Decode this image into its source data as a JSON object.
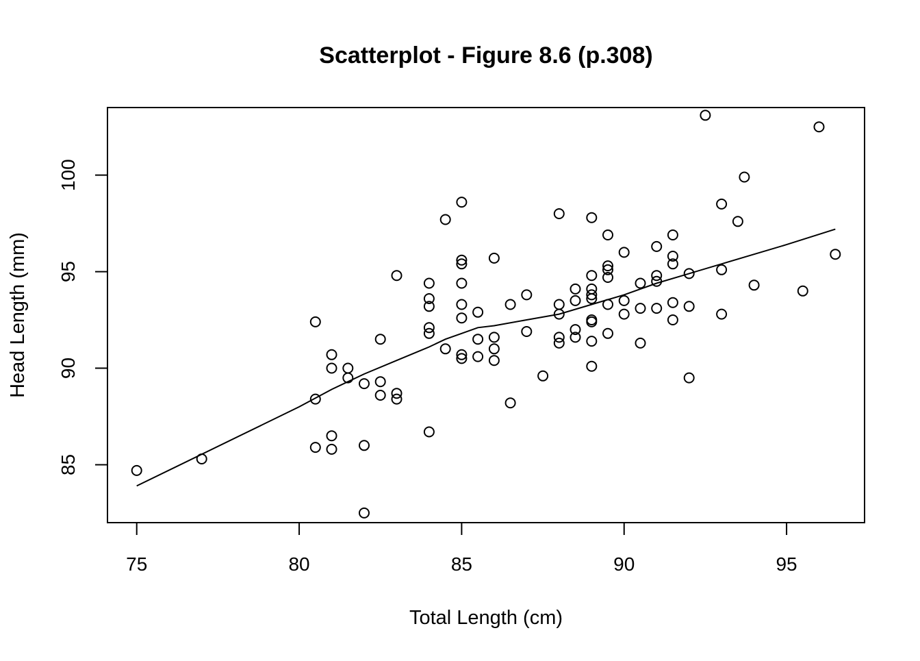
{
  "chart_data": {
    "type": "scatter",
    "title": "Scatterplot - Figure 8.6 (p.308)",
    "xlabel": "Total Length (cm)",
    "ylabel": "Head Length (mm)",
    "xlim": [
      74.1,
      97.4
    ],
    "ylim": [
      82.0,
      103.5
    ],
    "xticks": [
      75,
      80,
      85,
      90,
      95
    ],
    "yticks": [
      85,
      90,
      95,
      100
    ],
    "grid": false,
    "series": [
      {
        "marker": "open-circle",
        "points": [
          [
            75,
            84.7
          ],
          [
            77,
            85.3
          ],
          [
            80.5,
            92.4
          ],
          [
            80.5,
            88.4
          ],
          [
            80.5,
            85.9
          ],
          [
            81,
            90.7
          ],
          [
            81,
            90.0
          ],
          [
            81,
            86.5
          ],
          [
            81,
            85.8
          ],
          [
            81.5,
            90.0
          ],
          [
            81.5,
            89.5
          ],
          [
            82,
            89.2
          ],
          [
            82,
            86.0
          ],
          [
            82,
            82.5
          ],
          [
            82.5,
            91.5
          ],
          [
            82.5,
            89.3
          ],
          [
            82.5,
            88.6
          ],
          [
            83,
            94.8
          ],
          [
            83,
            88.7
          ],
          [
            83,
            88.4
          ],
          [
            84,
            94.4
          ],
          [
            84,
            93.6
          ],
          [
            84,
            93.2
          ],
          [
            84,
            92.1
          ],
          [
            84,
            91.8
          ],
          [
            84,
            86.7
          ],
          [
            84.5,
            97.7
          ],
          [
            84.5,
            91.0
          ],
          [
            85,
            98.6
          ],
          [
            85,
            95.6
          ],
          [
            85,
            95.4
          ],
          [
            85,
            94.4
          ],
          [
            85,
            93.3
          ],
          [
            85,
            92.6
          ],
          [
            85,
            90.7
          ],
          [
            85,
            90.5
          ],
          [
            85.5,
            92.9
          ],
          [
            85.5,
            91.5
          ],
          [
            85.5,
            90.6
          ],
          [
            86,
            95.7
          ],
          [
            86,
            91.6
          ],
          [
            86,
            91.0
          ],
          [
            86,
            90.4
          ],
          [
            86.5,
            93.3
          ],
          [
            86.5,
            88.2
          ],
          [
            87,
            93.8
          ],
          [
            87,
            91.9
          ],
          [
            87.5,
            89.6
          ],
          [
            88,
            98.0
          ],
          [
            88,
            93.3
          ],
          [
            88,
            92.8
          ],
          [
            88,
            91.6
          ],
          [
            88,
            91.3
          ],
          [
            88.5,
            94.1
          ],
          [
            88.5,
            93.5
          ],
          [
            88.5,
            92.0
          ],
          [
            88.5,
            91.6
          ],
          [
            89,
            97.8
          ],
          [
            89,
            94.8
          ],
          [
            89,
            94.1
          ],
          [
            89,
            93.8
          ],
          [
            89,
            93.6
          ],
          [
            89,
            92.5
          ],
          [
            89,
            92.4
          ],
          [
            89,
            91.4
          ],
          [
            89,
            90.1
          ],
          [
            89.5,
            96.9
          ],
          [
            89.5,
            95.3
          ],
          [
            89.5,
            95.1
          ],
          [
            89.5,
            94.7
          ],
          [
            89.5,
            93.3
          ],
          [
            89.5,
            91.8
          ],
          [
            90,
            96.0
          ],
          [
            90,
            93.5
          ],
          [
            90,
            92.8
          ],
          [
            90.5,
            94.4
          ],
          [
            90.5,
            93.1
          ],
          [
            90.5,
            91.3
          ],
          [
            91,
            96.3
          ],
          [
            91,
            94.8
          ],
          [
            91,
            94.5
          ],
          [
            91,
            93.1
          ],
          [
            91.5,
            96.9
          ],
          [
            91.5,
            95.8
          ],
          [
            91.5,
            95.4
          ],
          [
            91.5,
            93.4
          ],
          [
            91.5,
            92.5
          ],
          [
            92,
            94.9
          ],
          [
            92,
            93.2
          ],
          [
            92,
            89.5
          ],
          [
            92.5,
            103.1
          ],
          [
            93,
            98.5
          ],
          [
            93,
            95.1
          ],
          [
            93,
            92.8
          ],
          [
            93.5,
            97.6
          ],
          [
            93.7,
            99.9
          ],
          [
            94,
            94.3
          ],
          [
            95.5,
            94.0
          ],
          [
            96,
            102.5
          ],
          [
            96.5,
            95.9
          ]
        ]
      },
      {
        "type": "line",
        "points": [
          [
            75,
            83.9
          ],
          [
            80,
            88.0
          ],
          [
            81,
            88.9
          ],
          [
            82,
            89.7
          ],
          [
            83,
            90.4
          ],
          [
            84,
            91.1
          ],
          [
            84.5,
            91.5
          ],
          [
            85,
            91.8
          ],
          [
            85.5,
            92.1
          ],
          [
            86,
            92.2
          ],
          [
            87,
            92.5
          ],
          [
            88,
            92.8
          ],
          [
            89,
            93.3
          ],
          [
            90,
            93.8
          ],
          [
            91,
            94.4
          ],
          [
            92,
            94.9
          ],
          [
            93,
            95.4
          ],
          [
            94,
            95.9
          ],
          [
            95,
            96.4
          ],
          [
            96.5,
            97.2
          ]
        ]
      }
    ]
  }
}
